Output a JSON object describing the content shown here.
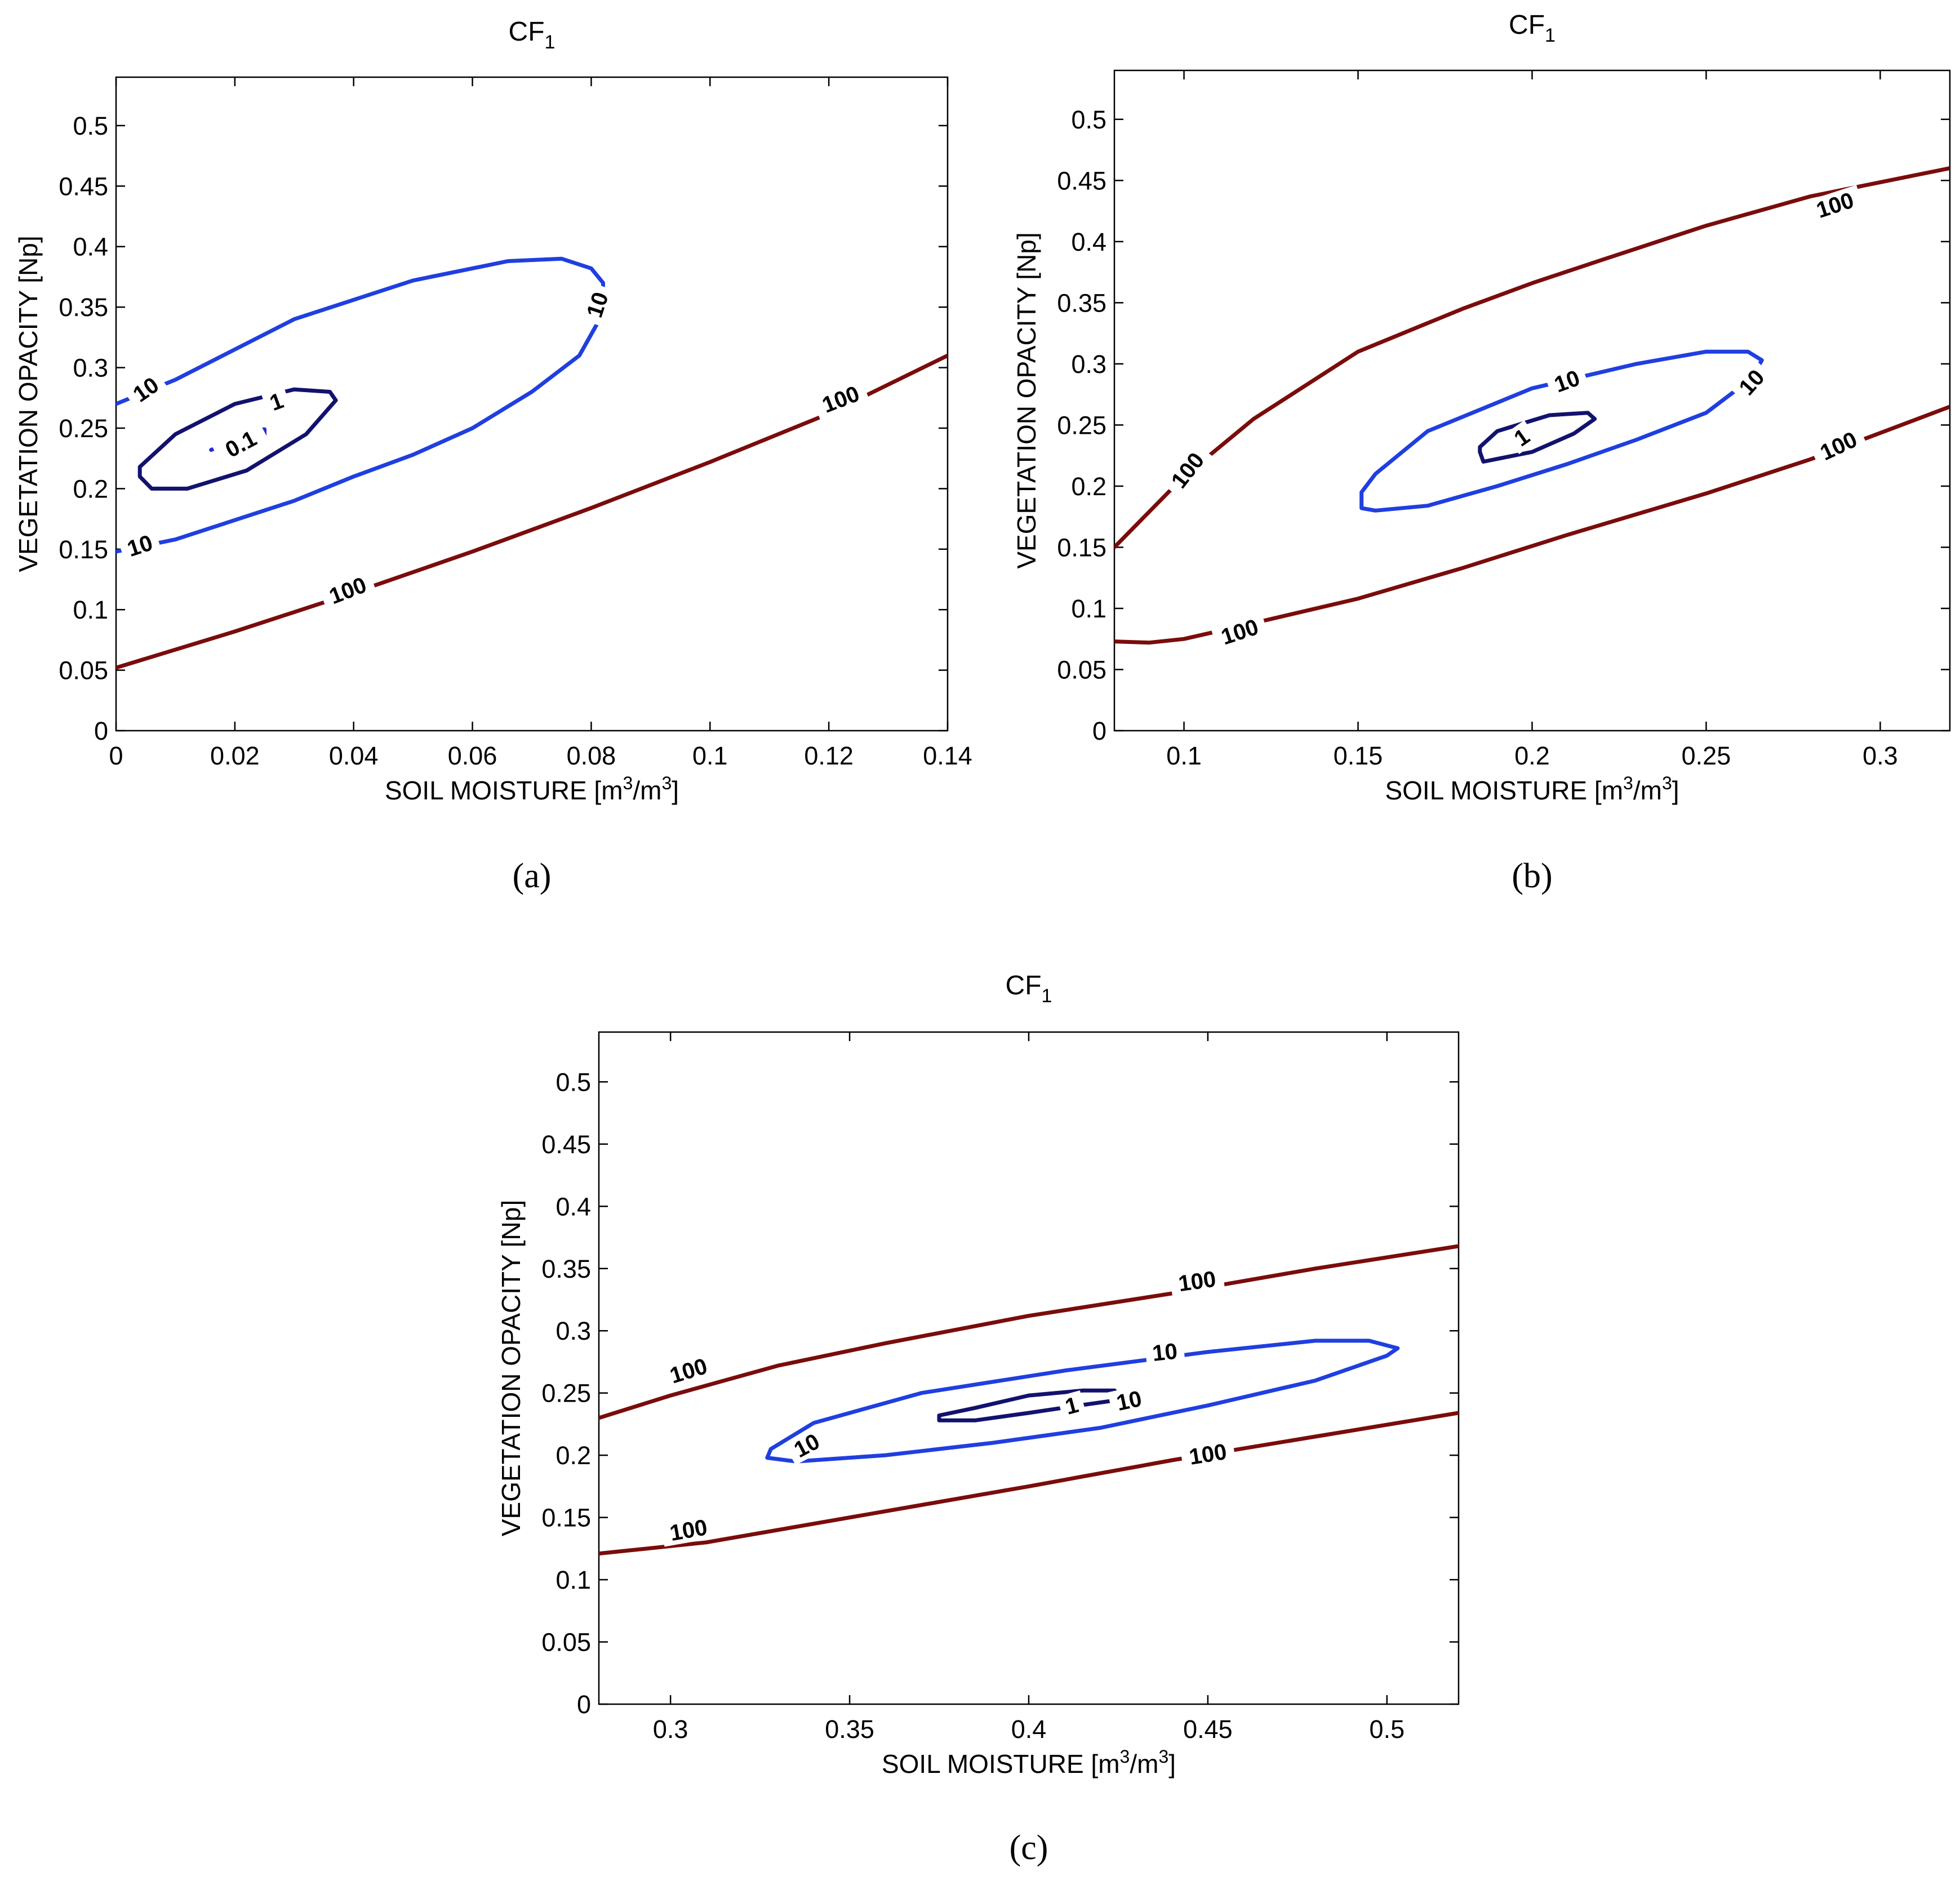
{
  "colors": {
    "level_0_1": "#2b2bd6",
    "level_1": "#12126e",
    "level_10": "#1f3fe0",
    "level_100": "#7a0c0c"
  },
  "chart_data": [
    {
      "type": "contour",
      "panel": "a",
      "caption": "(a)",
      "title": "CF",
      "title_subscript": "1",
      "xlabel": "SOIL MOISTURE [m",
      "xlabel_sup1": "3",
      "xlabel_mid": "/m",
      "xlabel_sup2": "3",
      "xlabel_end": "]",
      "ylabel": "VEGETATION OPACITY [Np]",
      "xlim": [
        0,
        0.14
      ],
      "ylim": [
        0,
        0.54
      ],
      "xticks": [
        0,
        0.02,
        0.04,
        0.06,
        0.08,
        0.1,
        0.12,
        0.14
      ],
      "xtick_labels": [
        "0",
        "0.02",
        "0.04",
        "0.06",
        "0.08",
        "0.1",
        "0.12",
        "0.14"
      ],
      "yticks": [
        0,
        0.05,
        0.1,
        0.15,
        0.2,
        0.25,
        0.3,
        0.35,
        0.4,
        0.45,
        0.5
      ],
      "ytick_labels": [
        "0",
        "0.05",
        "0.1",
        "0.15",
        "0.2",
        "0.25",
        "0.3",
        "0.35",
        "0.4",
        "0.45",
        "0.5"
      ],
      "contours": [
        {
          "level": "100",
          "closed": false,
          "points": [
            [
              0,
              0.052
            ],
            [
              0.02,
              0.082
            ],
            [
              0.04,
              0.114
            ],
            [
              0.06,
              0.148
            ],
            [
              0.08,
              0.184
            ],
            [
              0.1,
              0.222
            ],
            [
              0.12,
              0.262
            ],
            [
              0.14,
              0.31
            ]
          ]
        },
        {
          "level": "10",
          "closed": false,
          "points": [
            [
              0,
              0.148
            ],
            [
              0.01,
              0.158
            ],
            [
              0.02,
              0.174
            ],
            [
              0.03,
              0.19
            ],
            [
              0.04,
              0.21
            ],
            [
              0.05,
              0.228
            ],
            [
              0.06,
              0.25
            ],
            [
              0.07,
              0.28
            ],
            [
              0.078,
              0.31
            ],
            [
              0.082,
              0.345
            ],
            [
              0.082,
              0.37
            ],
            [
              0.08,
              0.382
            ],
            [
              0.075,
              0.39
            ],
            [
              0.066,
              0.388
            ],
            [
              0.05,
              0.372
            ],
            [
              0.03,
              0.34
            ],
            [
              0.01,
              0.29
            ],
            [
              0,
              0.27
            ]
          ]
        },
        {
          "level": "1",
          "closed": true,
          "points": [
            [
              0.004,
              0.21
            ],
            [
              0.006,
              0.2
            ],
            [
              0.012,
              0.2
            ],
            [
              0.022,
              0.215
            ],
            [
              0.032,
              0.245
            ],
            [
              0.037,
              0.273
            ],
            [
              0.036,
              0.28
            ],
            [
              0.03,
              0.282
            ],
            [
              0.02,
              0.27
            ],
            [
              0.01,
              0.245
            ],
            [
              0.004,
              0.218
            ]
          ]
        },
        {
          "level": "0.1",
          "closed": false,
          "points": [
            [
              0.016,
              0.232
            ],
            [
              0.018,
              0.236
            ],
            [
              0.022,
              0.24
            ],
            [
              0.025,
              0.244
            ],
            [
              0.025,
              0.249
            ],
            [
              0.022,
              0.248
            ]
          ]
        }
      ],
      "labels": [
        {
          "text": "100",
          "x": 0.039,
          "y": 0.116,
          "angle": -21
        },
        {
          "text": "100",
          "x": 0.122,
          "y": 0.274,
          "angle": -21
        },
        {
          "text": "10",
          "x": 0.004,
          "y": 0.153,
          "angle": -18
        },
        {
          "text": "10",
          "x": 0.005,
          "y": 0.282,
          "angle": -35
        },
        {
          "text": "10",
          "x": 0.081,
          "y": 0.352,
          "angle": -72
        },
        {
          "text": "1",
          "x": 0.027,
          "y": 0.272,
          "angle": -20
        },
        {
          "text": "0.1",
          "x": 0.021,
          "y": 0.237,
          "angle": -28
        }
      ]
    },
    {
      "type": "contour",
      "panel": "b",
      "caption": "(b)",
      "title": "CF",
      "title_subscript": "1",
      "xlabel": "SOIL MOISTURE [m",
      "xlabel_sup1": "3",
      "xlabel_mid": "/m",
      "xlabel_sup2": "3",
      "xlabel_end": "]",
      "ylabel": "VEGETATION OPACITY [Np]",
      "xlim": [
        0.08,
        0.32
      ],
      "ylim": [
        0,
        0.54
      ],
      "xticks": [
        0.1,
        0.15,
        0.2,
        0.25,
        0.3
      ],
      "xtick_labels": [
        "0.1",
        "0.15",
        "0.2",
        "0.25",
        "0.3"
      ],
      "yticks": [
        0,
        0.05,
        0.1,
        0.15,
        0.2,
        0.25,
        0.3,
        0.35,
        0.4,
        0.45,
        0.5
      ],
      "ytick_labels": [
        "0",
        "0.05",
        "0.1",
        "0.15",
        "0.2",
        "0.25",
        "0.3",
        "0.35",
        "0.4",
        "0.45",
        "0.5"
      ],
      "contours": [
        {
          "level": "100",
          "closed": false,
          "points": [
            [
              0.08,
              0.15
            ],
            [
              0.1,
              0.208
            ],
            [
              0.12,
              0.255
            ],
            [
              0.15,
              0.31
            ],
            [
              0.18,
              0.345
            ],
            [
              0.2,
              0.366
            ],
            [
              0.22,
              0.385
            ],
            [
              0.25,
              0.413
            ],
            [
              0.28,
              0.437
            ],
            [
              0.32,
              0.46
            ]
          ]
        },
        {
          "level": "100",
          "closed": false,
          "points": [
            [
              0.08,
              0.073
            ],
            [
              0.09,
              0.072
            ],
            [
              0.1,
              0.075
            ],
            [
              0.12,
              0.088
            ],
            [
              0.15,
              0.108
            ],
            [
              0.18,
              0.133
            ],
            [
              0.21,
              0.16
            ],
            [
              0.25,
              0.194
            ],
            [
              0.28,
              0.222
            ],
            [
              0.32,
              0.265
            ]
          ]
        },
        {
          "level": "10",
          "closed": true,
          "points": [
            [
              0.151,
              0.182
            ],
            [
              0.155,
              0.18
            ],
            [
              0.17,
              0.184
            ],
            [
              0.19,
              0.2
            ],
            [
              0.21,
              0.218
            ],
            [
              0.23,
              0.238
            ],
            [
              0.25,
              0.26
            ],
            [
              0.263,
              0.288
            ],
            [
              0.266,
              0.303
            ],
            [
              0.262,
              0.31
            ],
            [
              0.25,
              0.31
            ],
            [
              0.23,
              0.3
            ],
            [
              0.2,
              0.28
            ],
            [
              0.17,
              0.245
            ],
            [
              0.155,
              0.21
            ],
            [
              0.151,
              0.195
            ]
          ]
        },
        {
          "level": "1",
          "closed": true,
          "points": [
            [
              0.185,
              0.228
            ],
            [
              0.186,
              0.22
            ],
            [
              0.2,
              0.228
            ],
            [
              0.212,
              0.243
            ],
            [
              0.218,
              0.255
            ],
            [
              0.216,
              0.26
            ],
            [
              0.205,
              0.258
            ],
            [
              0.19,
              0.245
            ],
            [
              0.185,
              0.232
            ]
          ]
        }
      ],
      "labels": [
        {
          "text": "100",
          "x": 0.287,
          "y": 0.43,
          "angle": -18
        },
        {
          "text": "100",
          "x": 0.288,
          "y": 0.233,
          "angle": -25
        },
        {
          "text": "100",
          "x": 0.101,
          "y": 0.213,
          "angle": -52
        },
        {
          "text": "100",
          "x": 0.116,
          "y": 0.081,
          "angle": -18
        },
        {
          "text": "10",
          "x": 0.21,
          "y": 0.286,
          "angle": -20
        },
        {
          "text": "10",
          "x": 0.263,
          "y": 0.285,
          "angle": -48
        },
        {
          "text": "1",
          "x": 0.197,
          "y": 0.24,
          "angle": -35
        }
      ]
    },
    {
      "type": "contour",
      "panel": "c",
      "caption": "(c)",
      "title": "CF",
      "title_subscript": "1",
      "xlabel": "SOIL MOISTURE [m",
      "xlabel_sup1": "3",
      "xlabel_mid": "/m",
      "xlabel_sup2": "3",
      "xlabel_end": "]",
      "ylabel": "VEGETATION OPACITY [Np]",
      "xlim": [
        0.28,
        0.52
      ],
      "ylim": [
        0,
        0.54
      ],
      "xticks": [
        0.3,
        0.35,
        0.4,
        0.45,
        0.5
      ],
      "xtick_labels": [
        "0.3",
        "0.35",
        "0.4",
        "0.45",
        "0.5"
      ],
      "yticks": [
        0,
        0.05,
        0.1,
        0.15,
        0.2,
        0.25,
        0.3,
        0.35,
        0.4,
        0.45,
        0.5
      ],
      "ytick_labels": [
        "0",
        "0.05",
        "0.1",
        "0.15",
        "0.2",
        "0.25",
        "0.3",
        "0.35",
        "0.4",
        "0.45",
        "0.5"
      ],
      "contours": [
        {
          "level": "100",
          "closed": false,
          "points": [
            [
              0.28,
              0.23
            ],
            [
              0.3,
              0.248
            ],
            [
              0.33,
              0.272
            ],
            [
              0.36,
              0.29
            ],
            [
              0.4,
              0.312
            ],
            [
              0.44,
              0.33
            ],
            [
              0.48,
              0.35
            ],
            [
              0.52,
              0.368
            ]
          ]
        },
        {
          "level": "100",
          "closed": false,
          "points": [
            [
              0.28,
              0.121
            ],
            [
              0.31,
              0.13
            ],
            [
              0.34,
              0.145
            ],
            [
              0.37,
              0.16
            ],
            [
              0.4,
              0.175
            ],
            [
              0.44,
              0.196
            ],
            [
              0.48,
              0.215
            ],
            [
              0.52,
              0.234
            ]
          ]
        },
        {
          "level": "10",
          "closed": true,
          "points": [
            [
              0.327,
              0.198
            ],
            [
              0.335,
              0.195
            ],
            [
              0.36,
              0.2
            ],
            [
              0.39,
              0.21
            ],
            [
              0.42,
              0.222
            ],
            [
              0.45,
              0.24
            ],
            [
              0.48,
              0.26
            ],
            [
              0.5,
              0.28
            ],
            [
              0.503,
              0.286
            ],
            [
              0.495,
              0.292
            ],
            [
              0.48,
              0.292
            ],
            [
              0.45,
              0.283
            ],
            [
              0.41,
              0.268
            ],
            [
              0.37,
              0.25
            ],
            [
              0.34,
              0.226
            ],
            [
              0.328,
              0.205
            ]
          ]
        },
        {
          "level": "1",
          "closed": true,
          "points": [
            [
              0.375,
              0.228
            ],
            [
              0.385,
              0.228
            ],
            [
              0.4,
              0.234
            ],
            [
              0.414,
              0.24
            ],
            [
              0.424,
              0.244
            ],
            [
              0.424,
              0.252
            ],
            [
              0.415,
              0.252
            ],
            [
              0.4,
              0.248
            ],
            [
              0.385,
              0.238
            ],
            [
              0.375,
              0.232
            ]
          ]
        }
      ],
      "labels": [
        {
          "text": "100",
          "x": 0.447,
          "y": 0.34,
          "angle": -8
        },
        {
          "text": "100",
          "x": 0.305,
          "y": 0.268,
          "angle": -17
        },
        {
          "text": "100",
          "x": 0.45,
          "y": 0.201,
          "angle": -9
        },
        {
          "text": "100",
          "x": 0.305,
          "y": 0.14,
          "angle": -10
        },
        {
          "text": "10",
          "x": 0.338,
          "y": 0.208,
          "angle": -28
        },
        {
          "text": "10",
          "x": 0.438,
          "y": 0.283,
          "angle": -6
        },
        {
          "text": "10",
          "x": 0.428,
          "y": 0.244,
          "angle": -12
        },
        {
          "text": "1",
          "x": 0.412,
          "y": 0.24,
          "angle": -15
        }
      ]
    }
  ]
}
